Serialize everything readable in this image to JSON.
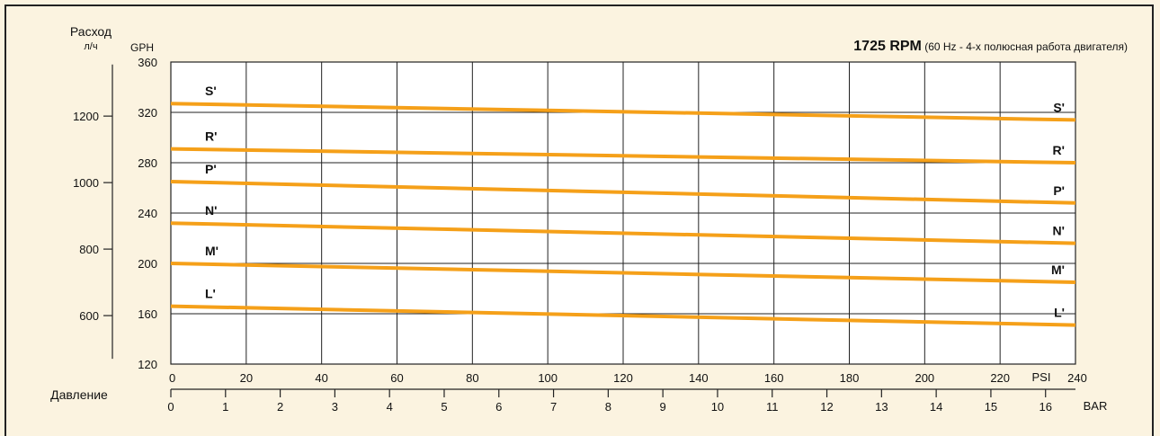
{
  "chart_data": {
    "type": "line",
    "title_bold": "1725 RPM",
    "title_rest": " (60 Hz - 4-х полюсная работа двигателя)",
    "ylabel": "Расход",
    "ylabel_unit": "л/ч",
    "y_gph_label": "GPH",
    "xlabel": "Давление",
    "x_psi_unit": "PSI",
    "x_bar_unit": "BAR",
    "xlim": [
      0,
      240
    ],
    "ylim": [
      120,
      360
    ],
    "psi_ticks": [
      0,
      20,
      40,
      60,
      80,
      100,
      120,
      140,
      160,
      180,
      200,
      220,
      240
    ],
    "gph_ticks": [
      120,
      160,
      200,
      240,
      280,
      320,
      360
    ],
    "lph_ticks": [
      600,
      800,
      1000,
      1200
    ],
    "bar_ticks": [
      0,
      1,
      2,
      3,
      4,
      5,
      6,
      7,
      8,
      9,
      10,
      11,
      12,
      13,
      14,
      15,
      16
    ],
    "series": [
      {
        "name": "S'",
        "x": [
          0,
          240
        ],
        "y": [
          327,
          314
        ]
      },
      {
        "name": "R'",
        "x": [
          0,
          240
        ],
        "y": [
          291,
          280
        ]
      },
      {
        "name": "P'",
        "x": [
          0,
          240
        ],
        "y": [
          265,
          248
        ]
      },
      {
        "name": "N'",
        "x": [
          0,
          240
        ],
        "y": [
          232,
          216
        ]
      },
      {
        "name": "M'",
        "x": [
          0,
          240
        ],
        "y": [
          200,
          185
        ]
      },
      {
        "name": "L'",
        "x": [
          0,
          240
        ],
        "y": [
          166,
          151
        ]
      }
    ],
    "grid": true,
    "line_color": "#f5a019"
  }
}
